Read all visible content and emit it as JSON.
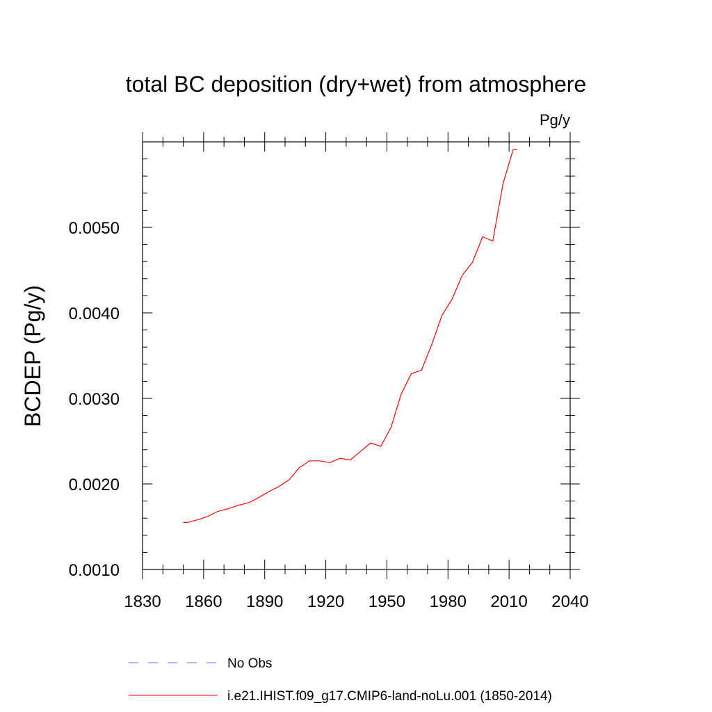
{
  "chart_data": {
    "type": "line",
    "title": "total BC deposition (dry+wet) from atmosphere",
    "units_label": "Pg/y",
    "xlabel": "",
    "ylabel": "BCDEP  (Pg/y)",
    "xlim": [
      1830,
      2040
    ],
    "ylim": [
      0.001,
      0.006
    ],
    "x_ticks": [
      "1830",
      "1860",
      "1890",
      "1920",
      "1950",
      "1980",
      "2010",
      "2040"
    ],
    "y_ticks": [
      "0.0010",
      "0.0020",
      "0.0030",
      "0.0040",
      "0.0050"
    ],
    "grid": false,
    "legend_position": "bottom",
    "series": [
      {
        "name": "No Obs",
        "color": "#7b68ee",
        "style": "dashed",
        "x": [],
        "y": []
      },
      {
        "name": "i.e21.IHIST.f09_g17.CMIP6-land-noLu.001 (1850-2014)",
        "color": "#ff0000",
        "style": "solid",
        "x": [
          1850,
          1852,
          1857,
          1862,
          1867,
          1872,
          1877,
          1882,
          1887,
          1892,
          1897,
          1902,
          1907,
          1912,
          1917,
          1922,
          1927,
          1932,
          1937,
          1942,
          1947,
          1952,
          1957,
          1962,
          1967,
          1972,
          1977,
          1982,
          1987,
          1992,
          1997,
          2002,
          2007,
          2012,
          2014
        ],
        "y": [
          0.00155,
          0.00155,
          0.00158,
          0.00162,
          0.00168,
          0.00171,
          0.00175,
          0.00178,
          0.00184,
          0.00191,
          0.00197,
          0.00205,
          0.00219,
          0.00227,
          0.00227,
          0.00225,
          0.0023,
          0.00228,
          0.00238,
          0.00248,
          0.00244,
          0.00266,
          0.00305,
          0.00329,
          0.00333,
          0.00363,
          0.00397,
          0.00416,
          0.00444,
          0.00459,
          0.00489,
          0.00484,
          0.00551,
          0.00591,
          0.00591
        ]
      }
    ]
  }
}
